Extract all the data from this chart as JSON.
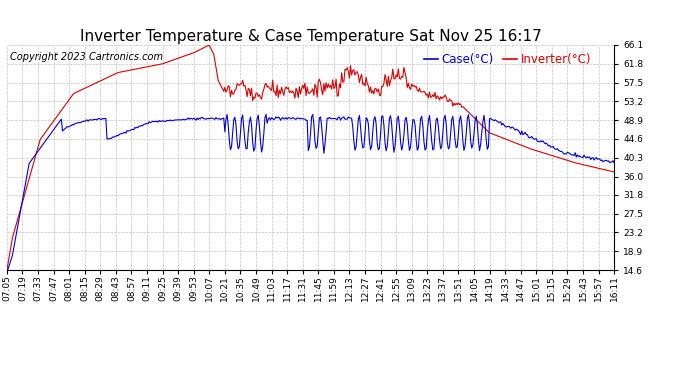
{
  "title": "Inverter Temperature & Case Temperature Sat Nov 25 16:17",
  "copyright": "Copyright 2023 Cartronics.com",
  "legend_case": "Case(°C)",
  "legend_inverter": "Inverter(°C)",
  "case_color": "#0000dd",
  "inverter_color": "#dd0000",
  "bg_color": "#ffffff",
  "plot_bg_color": "#ffffff",
  "grid_color": "#bbbbbb",
  "ylim": [
    14.6,
    66.1
  ],
  "yticks": [
    14.6,
    18.9,
    23.2,
    27.5,
    31.8,
    36.0,
    40.3,
    44.6,
    48.9,
    53.2,
    57.5,
    61.8,
    66.1
  ],
  "xtick_labels": [
    "07:05",
    "07:19",
    "07:33",
    "07:47",
    "08:01",
    "08:15",
    "08:29",
    "08:43",
    "08:57",
    "09:11",
    "09:25",
    "09:39",
    "09:53",
    "10:07",
    "10:21",
    "10:35",
    "10:49",
    "11:03",
    "11:17",
    "11:31",
    "11:45",
    "11:59",
    "12:13",
    "12:27",
    "12:41",
    "12:55",
    "13:09",
    "13:23",
    "13:37",
    "13:51",
    "14:05",
    "14:19",
    "14:33",
    "14:47",
    "15:01",
    "15:15",
    "15:29",
    "15:43",
    "15:57",
    "16:11"
  ],
  "title_fontsize": 11,
  "copyright_fontsize": 7,
  "legend_fontsize": 8.5,
  "tick_fontsize": 6.5,
  "linewidth": 0.8
}
